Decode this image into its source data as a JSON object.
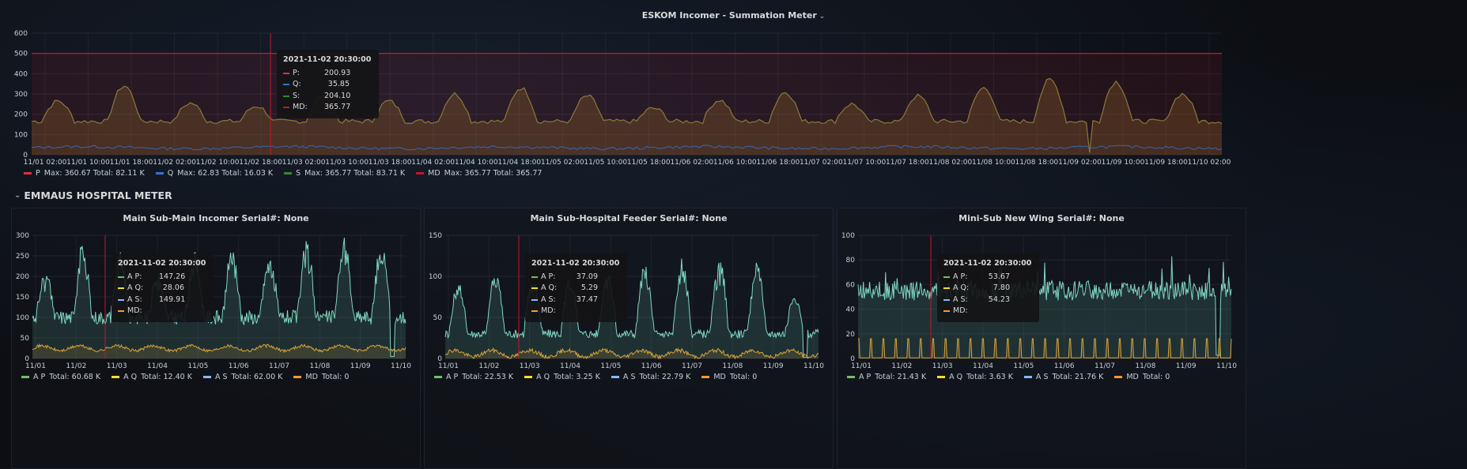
{
  "colors": {
    "p": "#e02f44",
    "q": "#3274d9",
    "s": "#37872d",
    "md": "#c4162a",
    "ap": "#73bf69",
    "aq": "#fade2a",
    "as": "#8ab8ff",
    "amd": "#ff9830",
    "teal": "#7ed6c4",
    "orange": "#d9a43a",
    "threshold": "#c4162a"
  },
  "top": {
    "title": "ESKOM Incomer - Summation Meter",
    "chev": "⌄",
    "tooltip": {
      "time": "2021-11-02 20:30:00",
      "rows": [
        {
          "label": "P:",
          "value": "200.93"
        },
        {
          "label": "Q:",
          "value": "35.85"
        },
        {
          "label": "S:",
          "value": "204.10"
        },
        {
          "label": "MD:",
          "value": "365.77"
        }
      ]
    },
    "legend": [
      {
        "name": "P",
        "stats": "Max: 360.67  Total: 82.11 K"
      },
      {
        "name": "Q",
        "stats": "Max: 62.83  Total: 16.03 K"
      },
      {
        "name": "S",
        "stats": "Max: 365.77  Total: 83.71 K"
      },
      {
        "name": "MD",
        "stats": "Max: 365.77  Total: 365.77"
      }
    ],
    "chart_data": {
      "type": "area",
      "yticks": [
        "600",
        "500",
        "400",
        "300",
        "200",
        "100",
        "0"
      ],
      "ylim": [
        0,
        600
      ],
      "threshold": 500,
      "xticks": [
        "11/01 02:00",
        "11/01 10:00",
        "11/01 18:00",
        "11/02 02:00",
        "11/02 10:00",
        "11/02 18:00",
        "11/03 02:00",
        "11/03 10:00",
        "11/03 18:00",
        "11/04 02:00",
        "11/04 10:00",
        "11/04 18:00",
        "11/05 02:00",
        "11/05 10:00",
        "11/05 18:00",
        "11/06 02:00",
        "11/06 10:00",
        "11/06 18:00",
        "11/07 02:00",
        "11/07 10:00",
        "11/07 18:00",
        "11/08 02:00",
        "11/08 10:00",
        "11/08 18:00",
        "11/09 02:00",
        "11/09 10:00",
        "11/09 18:00",
        "11/10 02:00"
      ],
      "s_peaks": [
        265,
        340,
        255,
        240,
        290,
        265,
        300,
        330,
        290,
        230,
        270,
        310,
        250,
        290,
        330,
        370,
        360,
        300
      ],
      "q_level": 35
    }
  },
  "row_header": {
    "chev": "⌄",
    "label": "EMMAUS HOSPITAL METER"
  },
  "panels": [
    {
      "title": "Main Sub-Main Incomer Serial#: None",
      "tooltip": {
        "time": "2021-11-02 20:30:00",
        "rows": [
          {
            "label": "A P:",
            "value": "147.26"
          },
          {
            "label": "A Q:",
            "value": "28.06"
          },
          {
            "label": "A S:",
            "value": "149.91"
          },
          {
            "label": "MD:",
            "value": ""
          }
        ]
      },
      "legend": [
        {
          "name": "A P",
          "stats": "Total: 60.68 K"
        },
        {
          "name": "A Q",
          "stats": "Total: 12.40 K"
        },
        {
          "name": "A S",
          "stats": "Total: 62.00 K"
        },
        {
          "name": "MD",
          "stats": "Total: 0"
        }
      ],
      "chart_data": {
        "type": "line",
        "yticks": [
          "300",
          "250",
          "200",
          "150",
          "100",
          "50",
          "0"
        ],
        "ylim": [
          0,
          300
        ],
        "xticks": [
          "11/01",
          "11/02",
          "11/03",
          "11/04",
          "11/05",
          "11/06",
          "11/07",
          "11/08",
          "11/09",
          "11/10"
        ],
        "base": 100,
        "peaks": [
          210,
          275,
          250,
          210,
          260,
          260,
          250,
          275,
          290,
          280
        ],
        "low": 25,
        "lowamp": 12
      }
    },
    {
      "title": "Main Sub-Hospital Feeder Serial#: None",
      "tooltip": {
        "time": "2021-11-02 20:30:00",
        "rows": [
          {
            "label": "A P:",
            "value": "37.09"
          },
          {
            "label": "A Q:",
            "value": "5.29"
          },
          {
            "label": "A S:",
            "value": "37.47"
          },
          {
            "label": "MD:",
            "value": ""
          }
        ]
      },
      "legend": [
        {
          "name": "A P",
          "stats": "Total: 22.53 K"
        },
        {
          "name": "A Q",
          "stats": "Total: 3.25 K"
        },
        {
          "name": "A S",
          "stats": "Total: 22.79 K"
        },
        {
          "name": "MD",
          "stats": "Total: 0"
        }
      ],
      "chart_data": {
        "type": "line",
        "yticks": [
          "150",
          "100",
          "50",
          "0"
        ],
        "ylim": [
          0,
          150
        ],
        "xticks": [
          "11/01",
          "11/02",
          "11/03",
          "11/04",
          "11/05",
          "11/06",
          "11/07",
          "11/08",
          "11/09",
          "11/10"
        ],
        "base": 30,
        "peaks": [
          95,
          110,
          100,
          100,
          110,
          115,
          120,
          120,
          125,
          80
        ],
        "low": 6,
        "lowamp": 8
      }
    },
    {
      "title": "Mini-Sub New Wing Serial#: None",
      "tooltip": {
        "time": "2021-11-02 20:30:00",
        "rows": [
          {
            "label": "A P:",
            "value": "53.67"
          },
          {
            "label": "A Q:",
            "value": "7.80"
          },
          {
            "label": "A S:",
            "value": "54.23"
          },
          {
            "label": "MD:",
            "value": ""
          }
        ]
      },
      "legend": [
        {
          "name": "A P",
          "stats": "Total: 21.43 K"
        },
        {
          "name": "A Q",
          "stats": "Total: 3.63 K"
        },
        {
          "name": "A S",
          "stats": "Total: 21.76 K"
        },
        {
          "name": "MD",
          "stats": "Total: 0"
        }
      ],
      "chart_data": {
        "type": "line",
        "yticks": [
          "100",
          "80",
          "60",
          "40",
          "20",
          "0"
        ],
        "ylim": [
          0,
          100
        ],
        "xticks": [
          "11/01",
          "11/02",
          "11/03",
          "11/04",
          "11/05",
          "11/06",
          "11/07",
          "11/08",
          "11/09",
          "11/10"
        ],
        "base": 52,
        "peaks": [
          65,
          70,
          72,
          68,
          70,
          72,
          74,
          78,
          80,
          82
        ],
        "low": 8,
        "lowamp": 8
      }
    }
  ]
}
